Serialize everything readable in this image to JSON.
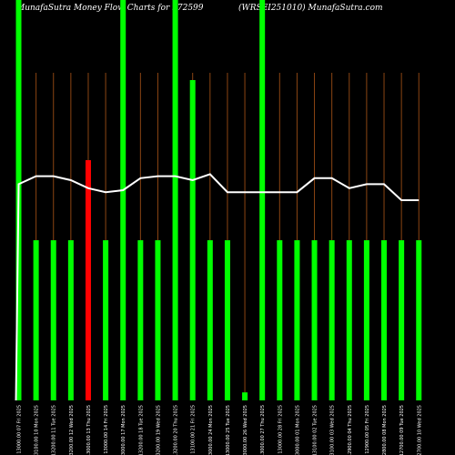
{
  "header": {
    "title_left": "MunafaSutra  Money Flow  Charts for 972599",
    "title_right": "(WRSEI251010) MunafaSutra.com"
  },
  "chart_data": {
    "type": "bar",
    "title": "MunafaSutra  Money Flow  Charts for 972599 (WRSEI251010) MunafaSutra.com",
    "colors": {
      "background": "#000000",
      "bar_up": "#00ff00",
      "bar_down": "#ff0000",
      "grid": "#8b4513",
      "line": "#ffffff"
    },
    "x_tick_labels": [
      "13000.00 07 Fri 2025",
      "13100.00 10 Mon 2025",
      "13200.00 11 Tue 2025",
      "13200.00 12 Wed 2025",
      "13000.00 13 Thu 2025",
      "13000.00 14 Fri 2025",
      "13000.00 17 Mon 2025",
      "13200.00 18 Tue 2025",
      "13200.00 19 Wed 2025",
      "13200.00 20 Thu 2025",
      "13100.00 21 Fri 2025",
      "13000.00 24 Mon 2025",
      "13000.00 25 Tue 2025",
      "13000.00 26 Wed 2025",
      "13000.00 27 Thu 2025",
      "13000.00 28 Fri 2025",
      "13000.00 01 Mon 2025",
      "13100.00 02 Tue 2025",
      "13100.00 03 Wed 2025",
      "12900.00 04 Thu 2025",
      "12900.00 05 Fri 2025",
      "12800.00 08 Mon 2025",
      "12700.00 09 Tue 2025",
      "12700.00 10 Wed 2025"
    ],
    "bars": [
      {
        "value": 100,
        "color": "up"
      },
      {
        "value": 40,
        "color": "up"
      },
      {
        "value": 40,
        "color": "up"
      },
      {
        "value": 40,
        "color": "up"
      },
      {
        "value": 60,
        "color": "down"
      },
      {
        "value": 40,
        "color": "up"
      },
      {
        "value": 100,
        "color": "up"
      },
      {
        "value": 40,
        "color": "up"
      },
      {
        "value": 40,
        "color": "up"
      },
      {
        "value": 100,
        "color": "up"
      },
      {
        "value": 80,
        "color": "up"
      },
      {
        "value": 40,
        "color": "up"
      },
      {
        "value": 40,
        "color": "up"
      },
      {
        "value": 2,
        "color": "up"
      },
      {
        "value": 100,
        "color": "up"
      },
      {
        "value": 40,
        "color": "up"
      },
      {
        "value": 40,
        "color": "up"
      },
      {
        "value": 40,
        "color": "up"
      },
      {
        "value": 40,
        "color": "up"
      },
      {
        "value": 40,
        "color": "up"
      },
      {
        "value": 40,
        "color": "up"
      },
      {
        "value": 40,
        "color": "up"
      },
      {
        "value": 40,
        "color": "up"
      },
      {
        "value": 40,
        "color": "up"
      }
    ],
    "line_start": 0,
    "line_values": [
      54,
      56,
      56,
      55,
      53,
      52,
      52.5,
      55.5,
      56,
      56,
      55,
      56.5,
      52,
      52,
      52,
      52,
      52,
      55.5,
      55.5,
      53,
      54,
      54,
      50,
      50
    ],
    "ylim": [
      0,
      100
    ],
    "grid": true
  }
}
